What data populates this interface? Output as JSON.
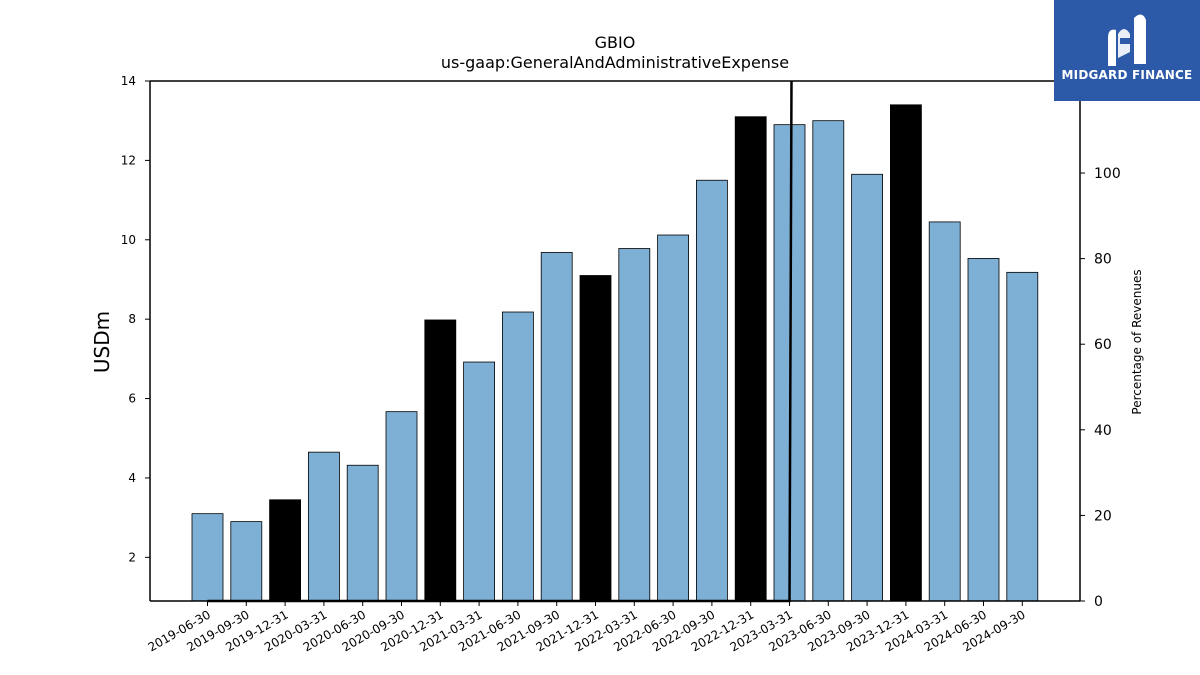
{
  "brand": {
    "name": "MIDGARD FINANCE",
    "icon": "midgard-logo-icon",
    "color": "#2d5aa8"
  },
  "chart_data": {
    "type": "bar",
    "title": "GBIO",
    "subtitle": "us-gaap:GeneralAndAdministrativeExpense",
    "ylabel": "USDm",
    "ylabel_right": "Percentage of Revenues",
    "ylim": [
      0.9,
      14
    ],
    "yticks": [
      2,
      4,
      6,
      8,
      10,
      12,
      14
    ],
    "ylim_right": [
      0,
      121.5
    ],
    "yticks_right": [
      0,
      20,
      40,
      60,
      80,
      100
    ],
    "grid": false,
    "colors": {
      "quarter": "#7eb0d5",
      "year_end": "#000000",
      "edge": "#000000",
      "line": "#000000"
    },
    "categories": [
      "2019-06-30",
      "2019-09-30",
      "2019-12-31",
      "2020-03-31",
      "2020-06-30",
      "2020-09-30",
      "2020-12-31",
      "2021-03-31",
      "2021-06-30",
      "2021-09-30",
      "2021-12-31",
      "2022-03-31",
      "2022-06-30",
      "2022-09-30",
      "2022-12-31",
      "2023-03-31",
      "2023-06-30",
      "2023-09-30",
      "2023-12-31",
      "2024-03-31",
      "2024-06-30",
      "2024-09-30"
    ],
    "values": [
      3.1,
      2.9,
      3.45,
      4.65,
      4.32,
      5.67,
      7.98,
      6.92,
      8.18,
      9.68,
      9.1,
      9.78,
      10.12,
      11.5,
      13.1,
      12.9,
      13.0,
      11.65,
      13.4,
      10.45,
      9.53,
      9.18
    ],
    "year_end": [
      false,
      false,
      true,
      false,
      false,
      false,
      true,
      false,
      false,
      false,
      true,
      false,
      false,
      false,
      true,
      false,
      false,
      false,
      true,
      false,
      false,
      false
    ],
    "series": [
      {
        "name": "",
        "axis": "right",
        "values": [
          0,
          0,
          0,
          0,
          0,
          0,
          0,
          0,
          0,
          0,
          0,
          0,
          0,
          0,
          0,
          0,
          null,
          null,
          null,
          null,
          null,
          null
        ],
        "spike": {
          "category": "2023-03-31",
          "value": 121.5
        }
      }
    ]
  }
}
